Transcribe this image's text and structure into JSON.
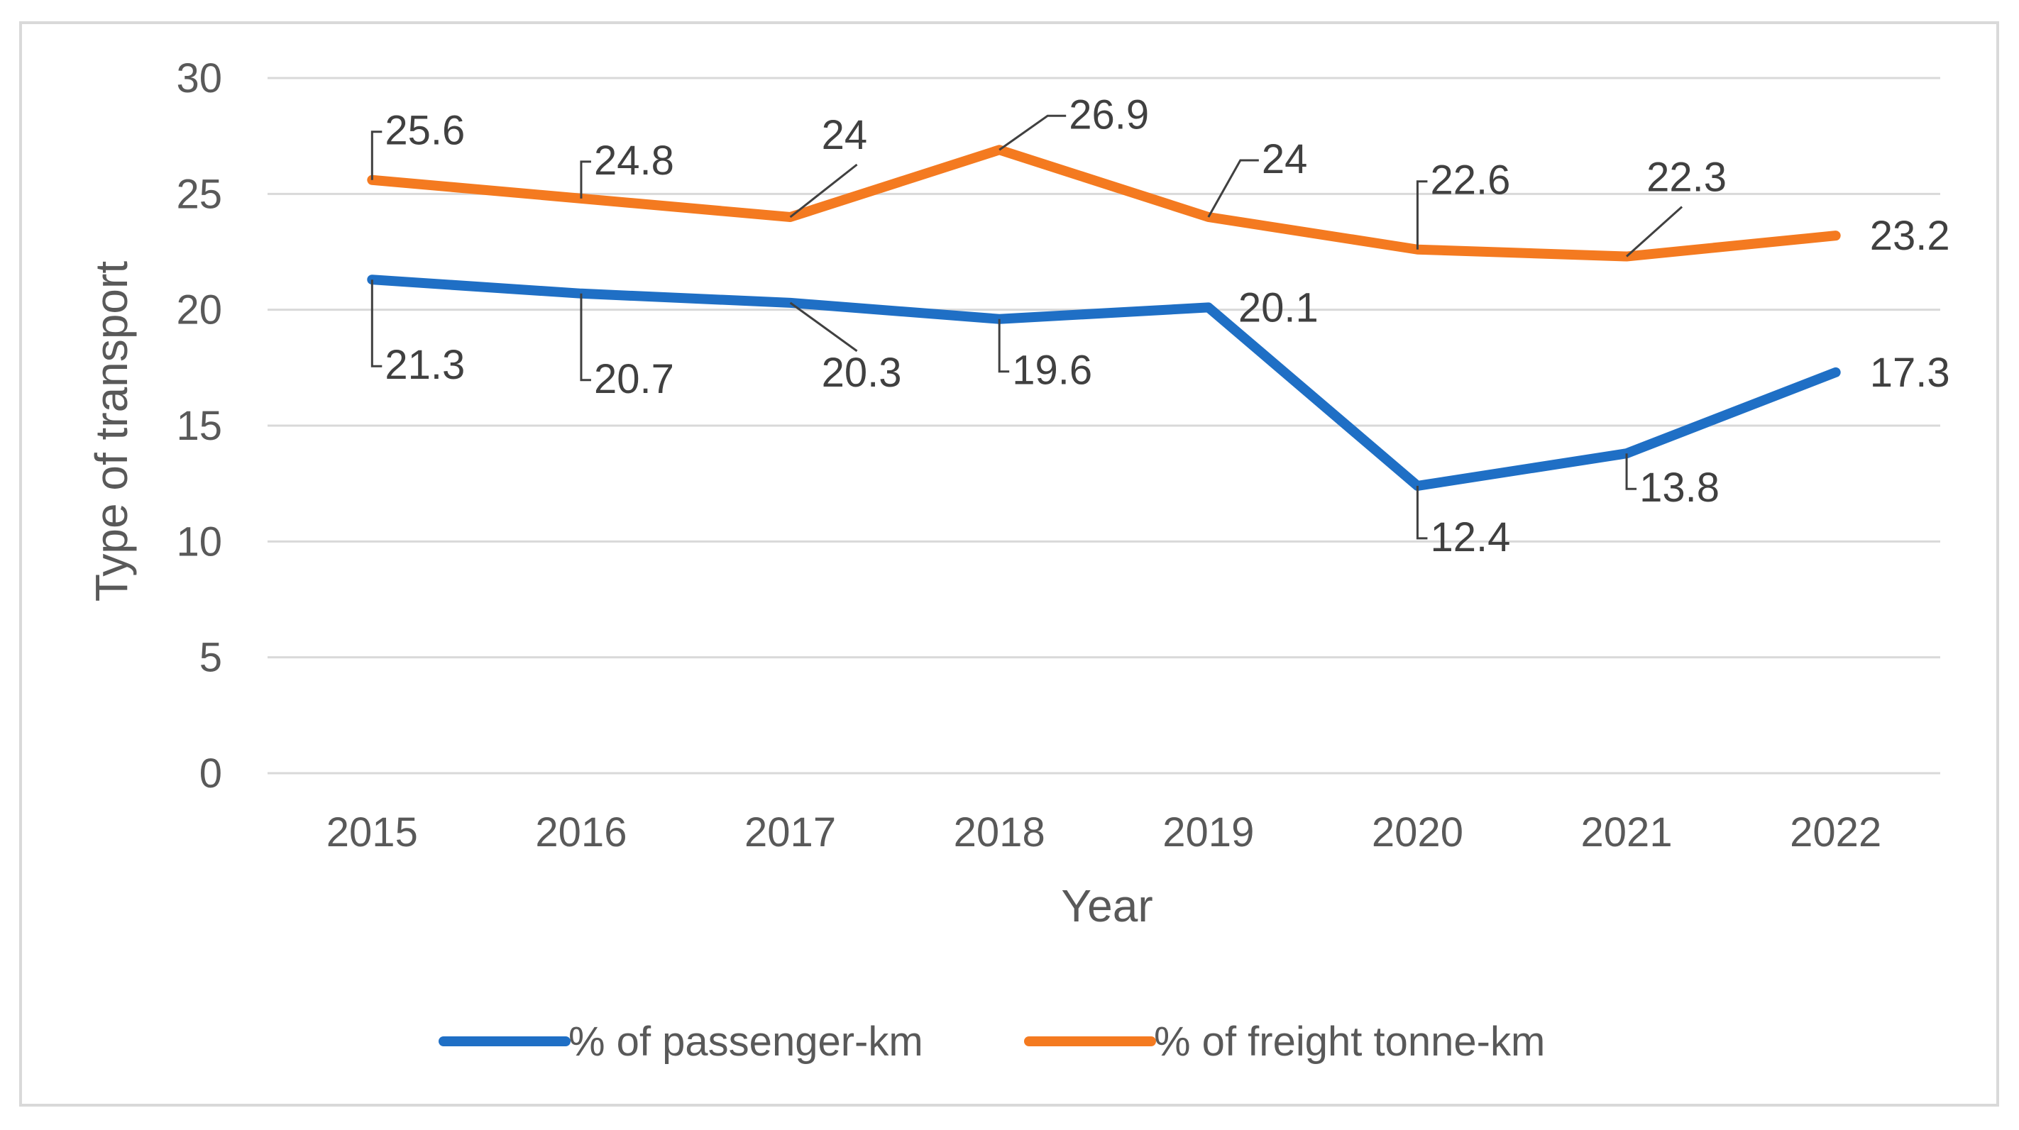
{
  "chart_data": {
    "type": "line",
    "title": "",
    "xlabel": "Year",
    "ylabel": "Type of transport",
    "categories": [
      "2015",
      "2016",
      "2017",
      "2018",
      "2019",
      "2020",
      "2021",
      "2022"
    ],
    "ylim": [
      0,
      30
    ],
    "yticks": [
      0,
      5,
      10,
      15,
      20,
      25,
      30
    ],
    "grid": true,
    "legend_position": "bottom",
    "series": [
      {
        "name": "% of passenger-km",
        "color": "#1f6fc5",
        "values": [
          21.3,
          20.7,
          20.3,
          19.6,
          20.1,
          12.4,
          13.8,
          17.3
        ],
        "labels": [
          "21.3",
          "20.7",
          "20.3",
          "19.6",
          "20.1",
          "12.4",
          "13.8",
          "17.3"
        ]
      },
      {
        "name": "% of freight tonne-km",
        "color": "#f47a20",
        "values": [
          25.6,
          24.8,
          24,
          26.9,
          24,
          22.6,
          22.3,
          23.2
        ],
        "labels": [
          "25.6",
          "24.8",
          "24",
          "26.9",
          "24",
          "22.6",
          "22.3",
          "23.2"
        ]
      }
    ]
  }
}
